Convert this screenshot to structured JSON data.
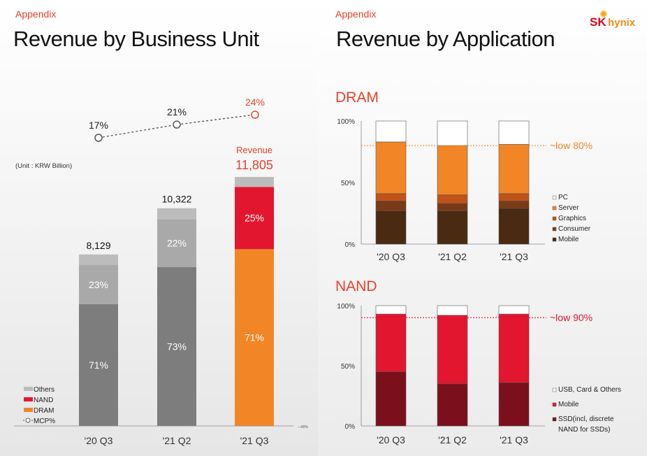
{
  "header": {
    "appendix_left": "Appendix",
    "appendix_right": "Appendix",
    "title_left": "Revenue by Business Unit",
    "title_right": "Revenue by Application",
    "logo_sk": "SK",
    "logo_hynix": "hynix"
  },
  "colors": {
    "accent": "#e8412c",
    "others": "#bcbcbc",
    "nand": "#e3162f",
    "dram": "#f28626",
    "gray_others": "#a9a9a9",
    "gray_dram": "#7d7d7d",
    "dram_pc": "#ffffff",
    "dram_server": "#f28626",
    "dram_graphics": "#c25218",
    "dram_consumer": "#7a3a17",
    "dram_mobile": "#4a2a10",
    "nand_usb": "#ffffff",
    "nand_mobile": "#e3162f",
    "nand_ssd": "#7c0f1c"
  },
  "chart_data": [
    {
      "type": "bar",
      "unit_label": "(Unit : KRW Billion)",
      "categories": [
        "'20 Q3",
        "'21 Q2",
        "'21 Q3"
      ],
      "totals": [
        8129,
        10322,
        11805
      ],
      "total_labels": [
        "8,129",
        "10,322",
        "11,805"
      ],
      "revenue_label": "Revenue",
      "series": [
        {
          "name": "DRAM",
          "values": [
            71,
            73,
            71
          ],
          "labels": [
            "71%",
            "73%",
            "71%"
          ]
        },
        {
          "name": "NAND",
          "values": [
            23,
            22,
            25
          ],
          "labels": [
            "23%",
            "22%",
            "25%"
          ]
        },
        {
          "name": "Others",
          "values": [
            6,
            5,
            4
          ],
          "labels": [
            "",
            "",
            ""
          ]
        }
      ],
      "mcp": {
        "name": "MCP%",
        "values": [
          17,
          21,
          24
        ],
        "labels": [
          "17%",
          "21%",
          "24%"
        ]
      },
      "legend": [
        "Others",
        "NAND",
        "DRAM",
        "MCP%"
      ],
      "axis_note": "80%"
    },
    {
      "type": "bar",
      "title": "DRAM",
      "categories": [
        "'20 Q3",
        "'21 Q2",
        "'21 Q3"
      ],
      "yticks": [
        "100%",
        "50%",
        "0%"
      ],
      "ylim": [
        0,
        100
      ],
      "series": [
        {
          "name": "Mobile",
          "values": [
            27,
            27,
            29
          ]
        },
        {
          "name": "Consumer",
          "values": [
            8,
            6,
            6
          ]
        },
        {
          "name": "Graphics",
          "values": [
            6,
            7,
            6
          ]
        },
        {
          "name": "Server",
          "values": [
            42,
            40,
            40
          ]
        },
        {
          "name": "PC",
          "values": [
            17,
            20,
            19
          ]
        }
      ],
      "legend": [
        "PC",
        "Server",
        "Graphics",
        "Consumer",
        "Mobile"
      ],
      "reference_line": {
        "value": 80,
        "label": "~low 80%"
      }
    },
    {
      "type": "bar",
      "title": "NAND",
      "categories": [
        "'20 Q3",
        "'21 Q2",
        "'21 Q3"
      ],
      "yticks": [
        "100%",
        "50%",
        "0%"
      ],
      "ylim": [
        0,
        100
      ],
      "series": [
        {
          "name": "SSD(incl, discrete NAND for SSDs)",
          "values": [
            45,
            35,
            36
          ]
        },
        {
          "name": "Mobile",
          "values": [
            48,
            57,
            57
          ]
        },
        {
          "name": "USB, Card & Others",
          "values": [
            7,
            8,
            7
          ]
        }
      ],
      "legend": [
        "USB, Card & Others",
        "Mobile",
        "SSD(incl, discrete",
        "NAND for SSDs)"
      ],
      "reference_line": {
        "value": 90,
        "label": "~low 90%"
      }
    }
  ]
}
